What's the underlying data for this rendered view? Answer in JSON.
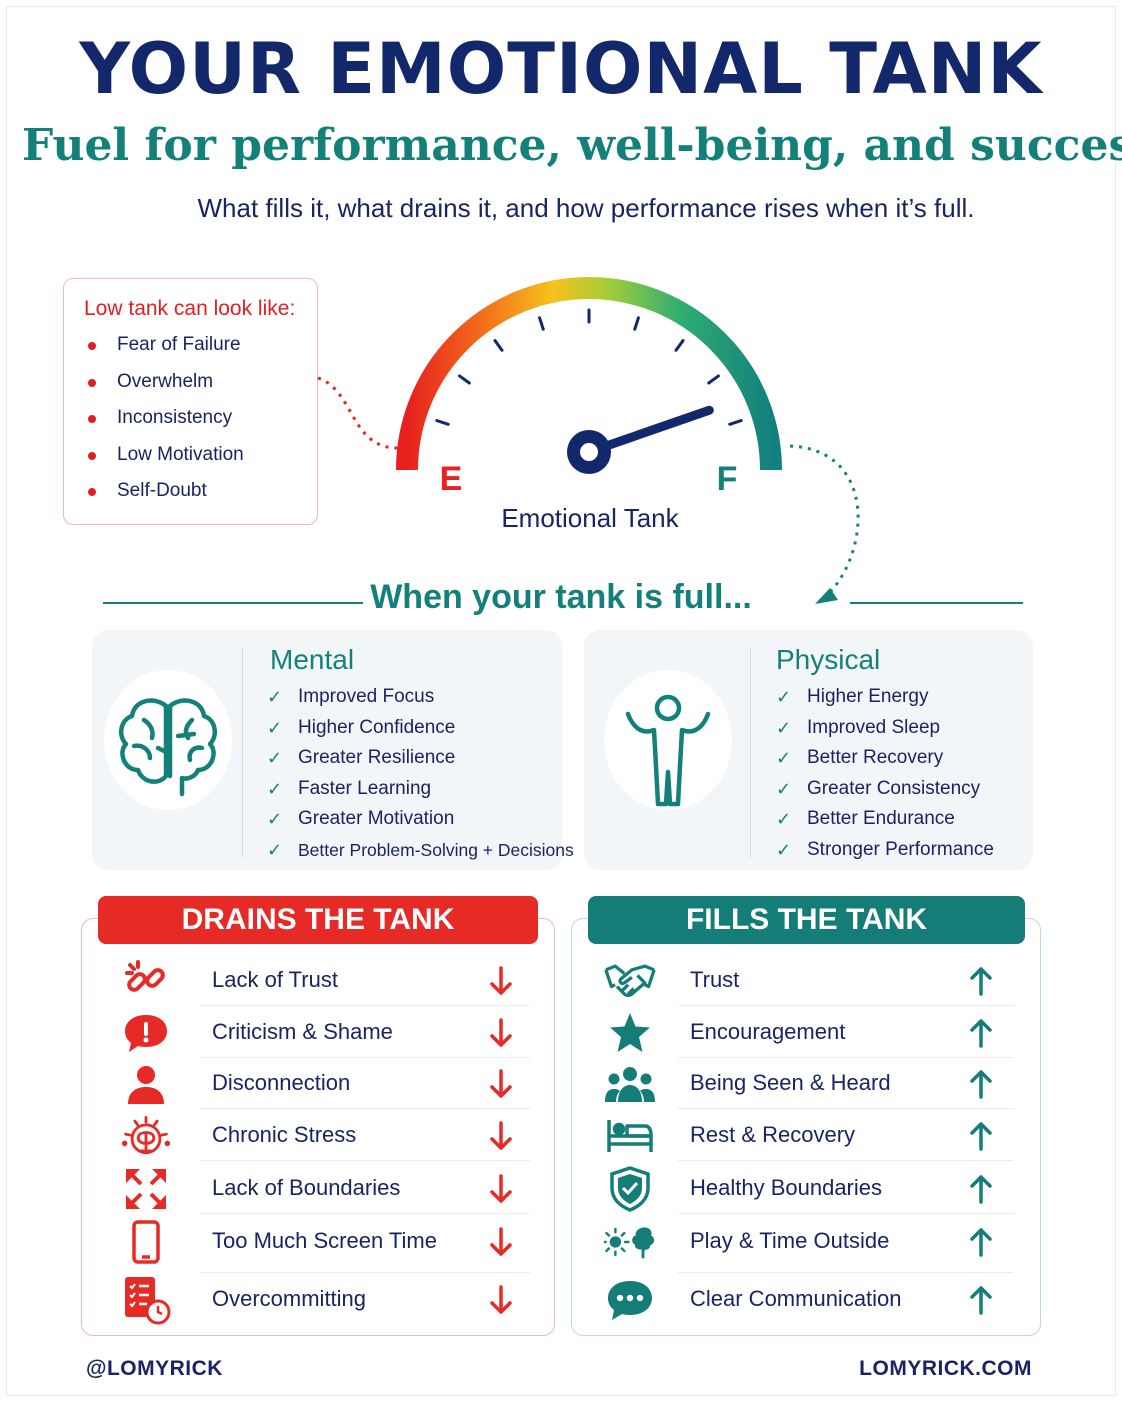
{
  "header": {
    "title": "YOUR EMOTIONAL TANK",
    "subtitle": "Fuel for performance, well-being, and success",
    "tagline": "What fills it, what drains it, and how performance rises when it’s full."
  },
  "low_tank": {
    "heading": "Low tank can look like:",
    "items": [
      "Fear of Failure",
      "Overwhelm",
      "Inconsistency",
      "Low Motivation",
      "Self-Doubt"
    ],
    "bullet_color": "#e02020"
  },
  "gauge": {
    "label": "Emotional Tank",
    "empty_label": "E",
    "full_label": "F",
    "level": 0.85,
    "colors": {
      "empty": "#e8201e",
      "full": "#14807a",
      "needle": "#13286b"
    }
  },
  "full_section": {
    "heading": "When your tank is full...",
    "mental": {
      "title": "Mental",
      "icon": "brain-icon",
      "items": [
        "Improved Focus",
        "Higher Confidence",
        "Greater Resilience",
        "Faster Learning",
        "Greater Motivation",
        "Better Problem-Solving + Decisions"
      ]
    },
    "physical": {
      "title": "Physical",
      "icon": "person-arms-up-icon",
      "items": [
        "Higher Energy",
        "Improved Sleep",
        "Better Recovery",
        "Greater Consistency",
        "Better Endurance",
        "Stronger Performance"
      ]
    }
  },
  "drains": {
    "heading": "DRAINS THE TANK",
    "color": "#e62a26",
    "items": [
      {
        "label": "Lack of Trust",
        "icon": "broken-link-icon"
      },
      {
        "label": "Criticism & Shame",
        "icon": "exclamation-bubble-icon"
      },
      {
        "label": "Disconnection",
        "icon": "person-icon"
      },
      {
        "label": "Chronic Stress",
        "icon": "stressed-brain-icon"
      },
      {
        "label": "Lack of Boundaries",
        "icon": "expand-arrows-icon"
      },
      {
        "label": "Too Much Screen Time",
        "icon": "phone-icon"
      },
      {
        "label": "Overcommitting",
        "icon": "checklist-clock-icon"
      }
    ]
  },
  "fills": {
    "heading": "FILLS THE TANK",
    "color": "#157d78",
    "items": [
      {
        "label": "Trust",
        "icon": "handshake-icon"
      },
      {
        "label": "Encouragement",
        "icon": "star-icon"
      },
      {
        "label": "Being Seen & Heard",
        "icon": "group-icon"
      },
      {
        "label": "Rest & Recovery",
        "icon": "bed-icon"
      },
      {
        "label": "Healthy Boundaries",
        "icon": "shield-check-icon"
      },
      {
        "label": "Play & Time Outside",
        "icon": "sun-tree-icon"
      },
      {
        "label": "Clear Communication",
        "icon": "chat-bubble-icon"
      }
    ]
  },
  "footer": {
    "left": "@LOMYRICK",
    "right": "LOMYRICK.COM"
  }
}
